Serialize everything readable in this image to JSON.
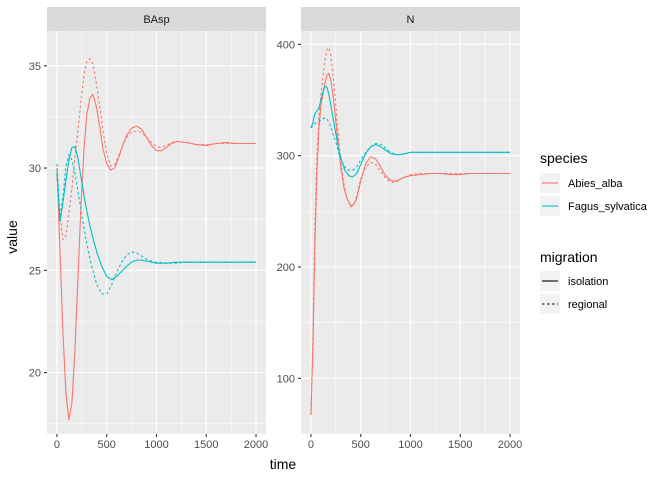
{
  "chart_data": {
    "type": "line",
    "xlabel": "time",
    "ylabel": "value",
    "x_ticks": [
      0,
      500,
      1000,
      1500,
      2000
    ],
    "colors": {
      "Abies_alba": "#F8766D",
      "Fagus_sylvatica": "#00BFC4"
    },
    "legend": {
      "placement": "right",
      "species_title": "species",
      "species": [
        "Abies_alba",
        "Fagus_sylvatica"
      ],
      "migration_title": "migration",
      "migration": [
        "isolation",
        "regional"
      ]
    },
    "panels": [
      {
        "strip": "BAsp",
        "xlim": [
          -100,
          2100
        ],
        "ylim": [
          17.0,
          36.7
        ],
        "y_ticks": [
          20,
          25,
          30,
          35
        ],
        "series": [
          {
            "species": "Abies_alba",
            "migration": "isolation",
            "x": [
              0,
              30,
              60,
              90,
              120,
              150,
              180,
              210,
              240,
              270,
              300,
              330,
              360,
              380,
              400,
              430,
              460,
              500,
              540,
              580,
              620,
              660,
              700,
              750,
              800,
              850,
              900,
              950,
              1000,
              1050,
              1100,
              1150,
              1200,
              1300,
              1400,
              1500,
              1600,
              1700,
              1800,
              1900,
              2000
            ],
            "y": [
              30,
              26,
              22,
              19,
              17.7,
              18.5,
              21,
              24.5,
              28,
              30.8,
              32.6,
              33.4,
              33.6,
              33.3,
              32.9,
              32,
              31,
              30.2,
              29.9,
              30,
              30.5,
              31.1,
              31.6,
              31.95,
              32.05,
              31.9,
              31.5,
              31.1,
              30.85,
              30.85,
              31,
              31.2,
              31.3,
              31.25,
              31.15,
              31.1,
              31.2,
              31.25,
              31.2,
              31.2,
              31.2
            ]
          },
          {
            "species": "Abies_alba",
            "migration": "regional",
            "x": [
              0,
              30,
              60,
              90,
              120,
              150,
              180,
              210,
              240,
              270,
              300,
              330,
              360,
              380,
              400,
              430,
              460,
              500,
              540,
              580,
              620,
              660,
              700,
              750,
              800,
              850,
              900,
              950,
              1000,
              1050,
              1100,
              1150,
              1200,
              1300,
              1400,
              1500,
              1600,
              1700,
              1800,
              1900,
              2000
            ],
            "y": [
              29.5,
              27.8,
              26.5,
              26.7,
              27.8,
              29,
              30.5,
              31.8,
              33.2,
              34.5,
              35.2,
              35.35,
              35.1,
              34.6,
              34,
              33,
              31.9,
              30.7,
              30.1,
              30.15,
              30.6,
              31.1,
              31.5,
              31.75,
              31.8,
              31.75,
              31.5,
              31.25,
              31.05,
              31,
              31.1,
              31.25,
              31.3,
              31.25,
              31.15,
              31.15,
              31.2,
              31.2,
              31.2,
              31.2,
              31.2
            ]
          },
          {
            "species": "Fagus_sylvatica",
            "migration": "isolation",
            "x": [
              0,
              30,
              60,
              90,
              120,
              150,
              180,
              210,
              240,
              270,
              300,
              330,
              360,
              400,
              450,
              500,
              550,
              600,
              650,
              700,
              750,
              800,
              850,
              900,
              950,
              1000,
              1100,
              1200,
              1300,
              1400,
              1500,
              1600,
              1700,
              1800,
              1900,
              2000
            ],
            "y": [
              29.8,
              27.4,
              28.3,
              29.4,
              30.4,
              31,
              31.05,
              30.5,
              29.6,
              28.7,
              27.9,
              27.2,
              26.6,
              25.9,
              25.2,
              24.7,
              24.55,
              24.7,
              24.95,
              25.2,
              25.4,
              25.5,
              25.5,
              25.45,
              25.4,
              25.35,
              25.35,
              25.4,
              25.4,
              25.4,
              25.4,
              25.4,
              25.4,
              25.4,
              25.4,
              25.4
            ]
          },
          {
            "species": "Fagus_sylvatica",
            "migration": "regional",
            "x": [
              0,
              30,
              60,
              90,
              120,
              150,
              180,
              210,
              240,
              270,
              300,
              330,
              360,
              400,
              450,
              500,
              550,
              600,
              650,
              700,
              750,
              800,
              850,
              900,
              950,
              1000,
              1100,
              1200,
              1300,
              1400,
              1500,
              1600,
              1700,
              1800,
              1900,
              2000
            ],
            "y": [
              30.2,
              27.6,
              28.6,
              30.1,
              30.65,
              30.4,
              29.8,
              28.9,
              28,
              27.1,
              26.3,
              25.6,
              25,
              24.3,
              23.85,
              23.85,
              24.3,
              24.9,
              25.4,
              25.75,
              25.9,
              25.85,
              25.7,
              25.55,
              25.45,
              25.4,
              25.35,
              25.35,
              25.4,
              25.4,
              25.4,
              25.4,
              25.4,
              25.4,
              25.4,
              25.4
            ]
          }
        ]
      },
      {
        "strip": "N",
        "xlim": [
          -100,
          2100
        ],
        "ylim": [
          50,
          412
        ],
        "y_ticks": [
          100,
          200,
          300,
          400
        ],
        "series": [
          {
            "species": "Abies_alba",
            "migration": "isolation",
            "x": [
              0,
              20,
              40,
              60,
              80,
              100,
              120,
              140,
              160,
              180,
              200,
              220,
              240,
              260,
              280,
              300,
              330,
              360,
              400,
              430,
              460,
              500,
              550,
              600,
              650,
              700,
              750,
              800,
              850,
              900,
              950,
              1000,
              1100,
              1200,
              1300,
              1400,
              1500,
              1600,
              1700,
              1800,
              1900,
              2000
            ],
            "y": [
              67,
              130,
              220,
              285,
              325,
              345,
              355,
              365,
              372,
              374,
              368,
              355,
              340,
              322,
              305,
              290,
              272,
              262,
              255,
              256,
              262,
              277,
              293,
              299,
              297,
              290,
              282,
              278,
              277,
              279,
              281,
              282,
              283,
              284,
              284,
              283,
              283,
              284,
              284,
              284,
              284,
              284
            ]
          },
          {
            "species": "Abies_alba",
            "migration": "regional",
            "x": [
              0,
              20,
              40,
              60,
              80,
              100,
              120,
              140,
              160,
              180,
              200,
              220,
              240,
              260,
              280,
              300,
              330,
              360,
              400,
              430,
              460,
              500,
              550,
              600,
              650,
              700,
              750,
              800,
              850,
              900,
              950,
              1000,
              1100,
              1200,
              1300,
              1400,
              1500,
              1600,
              1700,
              1800,
              1900,
              2000
            ],
            "y": [
              67,
              140,
              240,
              300,
              335,
              355,
              370,
              385,
              395,
              397,
              390,
              375,
              355,
              335,
              312,
              295,
              275,
              262,
              254,
              256,
              264,
              279,
              290,
              294,
              292,
              286,
              280,
              276,
              276,
              279,
              281,
              283,
              284,
              284,
              284,
              284,
              284,
              284,
              284,
              284,
              284,
              284
            ]
          },
          {
            "species": "Fagus_sylvatica",
            "migration": "isolation",
            "x": [
              0,
              20,
              40,
              60,
              80,
              100,
              120,
              140,
              160,
              180,
              200,
              220,
              250,
              280,
              310,
              340,
              380,
              420,
              460,
              500,
              550,
              600,
              650,
              700,
              750,
              800,
              850,
              900,
              950,
              1000,
              1100,
              1200,
              1300,
              1400,
              1500,
              1600,
              1700,
              1800,
              1900,
              2000
            ],
            "y": [
              325,
              330,
              338,
              340,
              343,
              350,
              357,
              362,
              362,
              355,
              345,
              335,
              320,
              305,
              295,
              287,
              282,
              281,
              284,
              292,
              302,
              308,
              310,
              308,
              305,
              302,
              301,
              301,
              302,
              303,
              303,
              303,
              303,
              303,
              303,
              303,
              303,
              303,
              303,
              303
            ]
          },
          {
            "species": "Fagus_sylvatica",
            "migration": "regional",
            "x": [
              0,
              20,
              40,
              60,
              80,
              100,
              120,
              140,
              160,
              180,
              200,
              220,
              250,
              280,
              310,
              340,
              380,
              420,
              460,
              500,
              550,
              600,
              650,
              700,
              750,
              800,
              850,
              900,
              950,
              1000,
              1100,
              1200,
              1300,
              1400,
              1500,
              1600,
              1700,
              1800,
              1900,
              2000
            ],
            "y": [
              325,
              327,
              329,
              330,
              331,
              332,
              333,
              334,
              333,
              330,
              326,
              320,
              312,
              302,
              295,
              290,
              287,
              287,
              290,
              296,
              303,
              308,
              311,
              310,
              307,
              303,
              301,
              301,
              302,
              303,
              303,
              303,
              303,
              303,
              303,
              303,
              303,
              303,
              303,
              303
            ]
          }
        ]
      }
    ]
  }
}
